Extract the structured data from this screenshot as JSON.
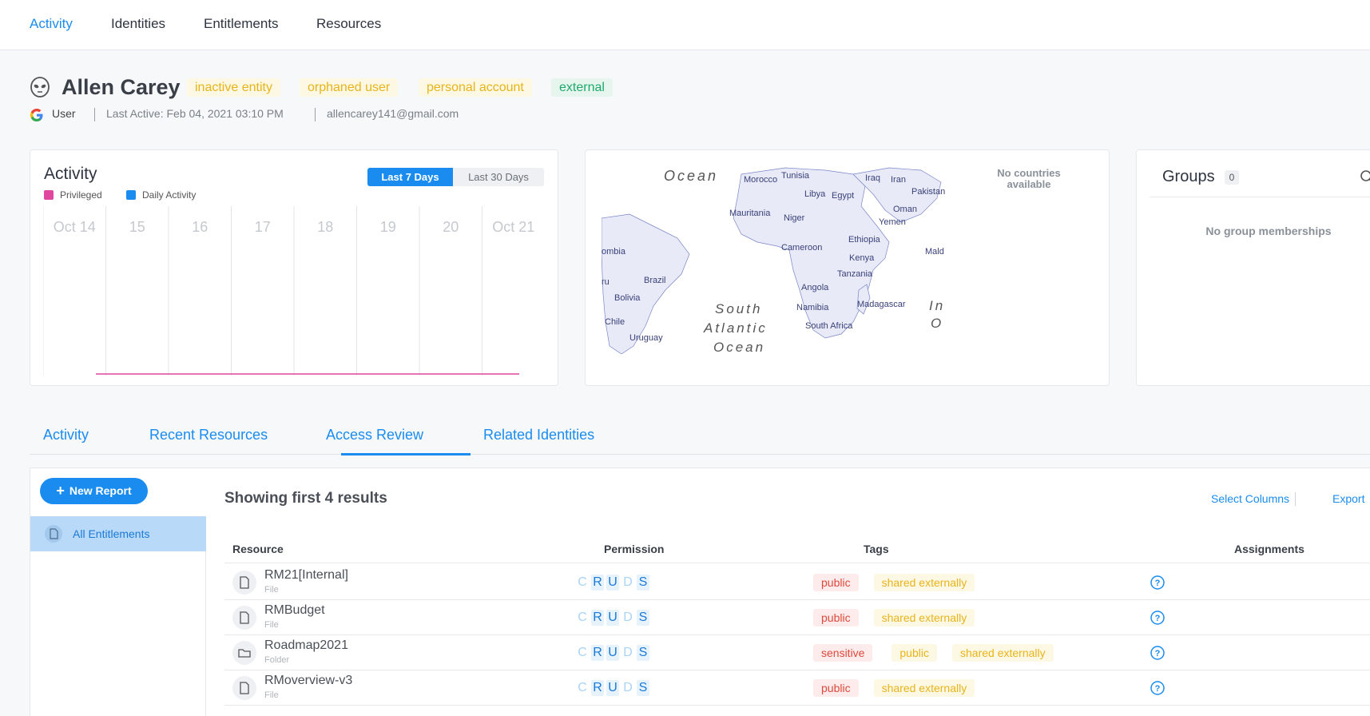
{
  "nav": {
    "items": [
      "Activity",
      "Identities",
      "Entitlements",
      "Resources"
    ],
    "active": "Activity"
  },
  "identity": {
    "name": "Allen Carey",
    "tags": [
      {
        "label": "inactive entity",
        "color": "#e8b41a"
      },
      {
        "label": "orphaned user",
        "color": "#e8b41a"
      },
      {
        "label": "personal account",
        "color": "#e8b41a"
      },
      {
        "label": "external",
        "color": "#1fa86b"
      }
    ],
    "provider_icon": "google-icon",
    "type": "User",
    "last_active": "Last Active: Feb 04, 2021 03:10 PM",
    "email": "allencarey141@gmail.com"
  },
  "activity_card": {
    "title": "Activity",
    "legend": [
      {
        "label": "Privileged",
        "color": "#e0479e"
      },
      {
        "label": "Daily Activity",
        "color": "#1a8cf0"
      }
    ],
    "range_buttons": [
      "Last 7 Days",
      "Last 30 Days"
    ],
    "selected_range": "Last 7 Days"
  },
  "chart_data": {
    "type": "line",
    "categories": [
      "Oct 14",
      "15",
      "16",
      "17",
      "18",
      "19",
      "20",
      "Oct 21"
    ],
    "series": [
      {
        "name": "Privileged",
        "values": [
          0,
          0,
          0,
          0,
          0,
          0,
          0,
          0
        ]
      },
      {
        "name": "Daily Activity",
        "values": [
          0,
          0,
          0,
          0,
          0,
          0,
          0,
          0
        ]
      }
    ],
    "title": "Activity",
    "legend_position": "top-left",
    "grid": true
  },
  "map": {
    "empty_text": "No countries available",
    "labels": [
      "Ocean",
      "Morocco",
      "Tunisia",
      "Iraq",
      "Iran",
      "Pakistan",
      "Libya",
      "Egypt",
      "Oman",
      "Mauritania",
      "Niger",
      "Yemen",
      "Ethiopia",
      "Cameroon",
      "Kenya",
      "Mald",
      "Tanzania",
      "Angola",
      "Madagascar",
      "Namibia",
      "South Africa",
      "ombia",
      "Brazil",
      "ru",
      "Bolivia",
      "Chile",
      "Uruguay",
      "South",
      "Atlantic",
      "Ocean",
      "In",
      "O"
    ]
  },
  "groups": {
    "title": "Groups",
    "count": "0",
    "empty_text": "No group memberships"
  },
  "tabs": {
    "items": [
      "Activity",
      "Recent Resources",
      "Access Review",
      "Related Identities"
    ],
    "active": "Access Review"
  },
  "report": {
    "new_button": "New Report",
    "side_items": [
      "All Entitlements"
    ],
    "results_text": "Showing first 4 results",
    "select_columns": "Select Columns",
    "export": "Export",
    "columns": [
      "Resource",
      "Permission",
      "Tags",
      "Assignments"
    ],
    "permission_letters": [
      "C",
      "R",
      "U",
      "D",
      "S"
    ],
    "rows": [
      {
        "name": "RM21[Internal]",
        "type": "File",
        "icon": "file-icon",
        "perms": [
          false,
          true,
          true,
          false,
          true
        ],
        "tags": [
          {
            "label": "public",
            "color": "red"
          },
          {
            "label": "shared externally",
            "color": "yellow"
          }
        ]
      },
      {
        "name": "RMBudget",
        "type": "File",
        "icon": "file-icon",
        "perms": [
          false,
          true,
          true,
          false,
          true
        ],
        "tags": [
          {
            "label": "public",
            "color": "red"
          },
          {
            "label": "shared externally",
            "color": "yellow"
          }
        ]
      },
      {
        "name": "Roadmap2021",
        "type": "Folder",
        "icon": "folder-icon",
        "perms": [
          false,
          true,
          true,
          false,
          true
        ],
        "tags": [
          {
            "label": "sensitive",
            "color": "red"
          },
          {
            "label": "public",
            "color": "yellow"
          },
          {
            "label": "shared externally",
            "color": "yellow"
          }
        ]
      },
      {
        "name": "RMoverview-v3",
        "type": "File",
        "icon": "file-icon",
        "perms": [
          false,
          true,
          true,
          false,
          true
        ],
        "tags": [
          {
            "label": "public",
            "color": "red"
          },
          {
            "label": "shared externally",
            "color": "yellow"
          }
        ]
      }
    ]
  }
}
